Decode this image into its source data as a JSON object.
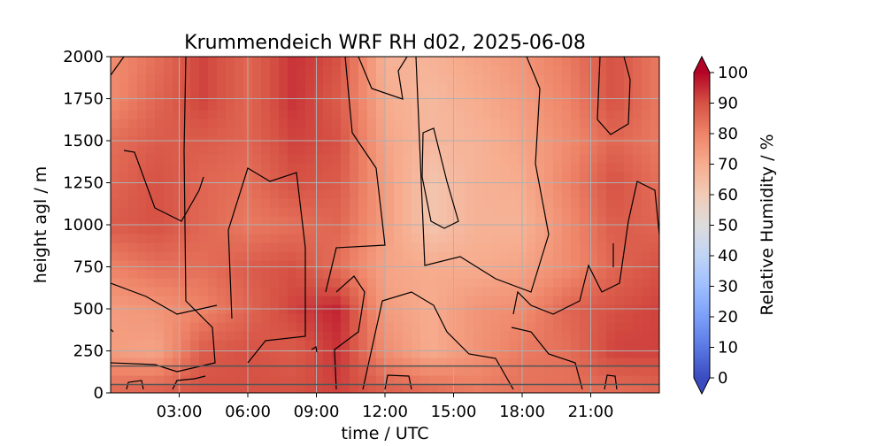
{
  "chart_data": {
    "type": "heatmap",
    "title": "Krummendeich WRF RH d02, 2025-06-08",
    "xlabel": "time / UTC",
    "ylabel": "height agl / m",
    "colorbar_label": "Relative Humidity / %",
    "x_tick_labels": [
      "03:00",
      "06:00",
      "09:00",
      "12:00",
      "15:00",
      "18:00",
      "21:00"
    ],
    "x_tick_hours": [
      3,
      6,
      9,
      12,
      15,
      18,
      21
    ],
    "xlim_hours": [
      0,
      24
    ],
    "y_ticks": [
      0,
      250,
      500,
      750,
      1000,
      1250,
      1500,
      1750,
      2000
    ],
    "ylim": [
      0,
      2000
    ],
    "colorbar_ticks": [
      0,
      10,
      20,
      30,
      40,
      50,
      60,
      70,
      80,
      90,
      100
    ],
    "colorbar_range": [
      0,
      100
    ],
    "colormap": "coolwarm",
    "grid": true,
    "contour_levels": [
      70,
      80,
      90
    ],
    "horizontal_lines_m": [
      50,
      160
    ],
    "rh_field": {
      "heights_m": [
        0,
        250,
        500,
        750,
        1000,
        1250,
        1500,
        1750,
        2000
      ],
      "times_h": [
        0,
        2,
        4,
        6,
        8,
        10,
        12,
        14,
        16,
        18,
        20,
        22,
        24
      ],
      "values": [
        [
          86,
          88,
          90,
          90,
          90,
          92,
          88,
          86,
          82,
          84,
          84,
          84,
          86
        ],
        [
          74,
          72,
          88,
          90,
          88,
          94,
          78,
          70,
          76,
          82,
          84,
          92,
          92
        ],
        [
          74,
          76,
          80,
          86,
          92,
          96,
          74,
          70,
          76,
          78,
          86,
          90,
          92
        ],
        [
          80,
          84,
          84,
          88,
          90,
          84,
          72,
          70,
          70,
          72,
          78,
          86,
          90
        ],
        [
          88,
          90,
          86,
          82,
          84,
          86,
          74,
          62,
          68,
          68,
          78,
          88,
          86
        ],
        [
          86,
          90,
          86,
          84,
          90,
          88,
          74,
          62,
          68,
          70,
          80,
          90,
          84
        ],
        [
          84,
          88,
          88,
          86,
          92,
          90,
          72,
          66,
          68,
          72,
          78,
          86,
          82
        ],
        [
          78,
          86,
          92,
          86,
          94,
          88,
          70,
          66,
          70,
          74,
          80,
          90,
          82
        ],
        [
          78,
          84,
          92,
          86,
          94,
          90,
          68,
          68,
          72,
          76,
          82,
          90,
          82
        ]
      ]
    }
  }
}
